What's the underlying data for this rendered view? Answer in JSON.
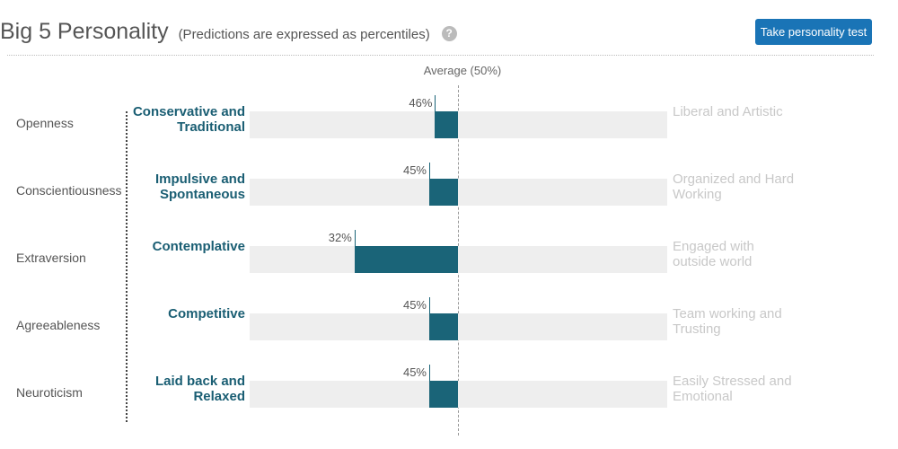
{
  "header": {
    "title": "Big 5 Personality",
    "subtitle": "(Predictions are expressed as percentiles)",
    "help_glyph": "?",
    "button_label": "Take personality test"
  },
  "average_label": "Average (50%)",
  "traits": [
    {
      "name": "Openness",
      "low_label": "Conservative and Traditional",
      "high_label": "Liberal and Artistic",
      "percentile": 46,
      "percent_label": "46%"
    },
    {
      "name": "Conscientiousness",
      "low_label": "Impulsive and Spontaneous",
      "high_label": "Organized and Hard Working",
      "percentile": 45,
      "percent_label": "45%"
    },
    {
      "name": "Extraversion",
      "low_label": "Contemplative",
      "high_label": "Engaged with outside world",
      "percentile": 32,
      "percent_label": "32%"
    },
    {
      "name": "Agreeableness",
      "low_label": "Competitive",
      "high_label": "Team working and Trusting",
      "percentile": 45,
      "percent_label": "45%"
    },
    {
      "name": "Neuroticism",
      "low_label": "Laid back and Relaxed",
      "high_label": "Easily Stressed and Emotional",
      "percentile": 45,
      "percent_label": "45%"
    }
  ],
  "colors": {
    "bar": "#1a6478",
    "track": "#eeeeee",
    "low_label": "#1a5e73",
    "high_label": "#c8c8c8",
    "button": "#1a74b6"
  }
}
